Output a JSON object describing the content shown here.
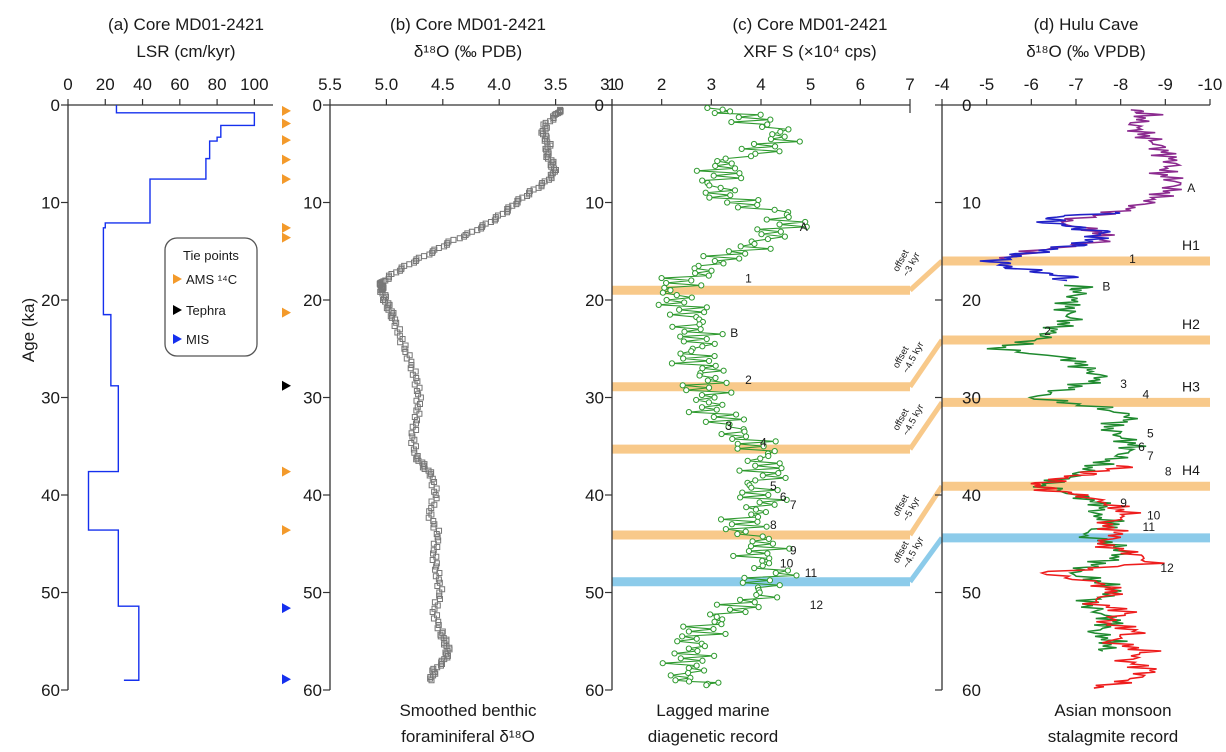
{
  "figure": {
    "ylabel": "Age (ka)",
    "ylim": [
      0,
      60
    ],
    "yticks": [
      0,
      10,
      20,
      30,
      40,
      50,
      60
    ]
  },
  "panels": {
    "a": {
      "title1": "(a) Core MD01-2421",
      "title2": "LSR (cm/kyr)",
      "xticks": [
        "0",
        "20",
        "40",
        "60",
        "80",
        "100"
      ],
      "legend": {
        "title": "Tie points",
        "items": [
          {
            "label": "AMS ¹⁴C",
            "color": "#f39a2b"
          },
          {
            "label": "Tephra",
            "color": "#000000"
          },
          {
            "label": "MIS",
            "color": "#1530ee"
          }
        ]
      }
    },
    "b": {
      "title1": "(b) Core MD01-2421",
      "title2": "δ¹⁸O (‰ PDB)",
      "xticks": [
        "5.5",
        "5.0",
        "4.5",
        "4.0",
        "3.5",
        "3.0"
      ],
      "caption1": "Smoothed benthic",
      "caption2": "foraminiferal δ¹⁸O"
    },
    "c": {
      "title1": "(c) Core MD01-2421",
      "title2": "XRF S (×10⁴ cps)",
      "xticks": [
        "1",
        "2",
        "3",
        "4",
        "5",
        "6",
        "7"
      ],
      "caption1": "Lagged marine",
      "caption2": "diagenetic record",
      "offset_labels": [
        {
          "line1": "offset",
          "line2": "~3 kyr"
        },
        {
          "line1": "offset",
          "line2": "~4.5 kyr"
        },
        {
          "line1": "offset",
          "line2": "~4.5 kyr"
        },
        {
          "line1": "offset",
          "line2": "~5 kyr"
        },
        {
          "line1": "offset",
          "line2": "~4.5 kyr"
        }
      ],
      "event_labels": [
        "A",
        "1",
        "B",
        "2",
        "3",
        "4",
        "5",
        "6",
        "7",
        "8",
        "9",
        "10",
        "11",
        "12"
      ]
    },
    "d": {
      "title1": "(d) Hulu Cave",
      "title2": "δ¹⁸O (‰ VPDB)",
      "xticks": [
        "-4",
        "-5",
        "-6",
        "-7",
        "-8",
        "-9",
        "-10"
      ],
      "caption1": "Asian monsoon",
      "caption2": "stalagmite record",
      "heinrich_labels": [
        "H1",
        "H2",
        "H3",
        "H4"
      ],
      "event_labels": [
        "A",
        "1",
        "B",
        "2",
        "3",
        "4",
        "5",
        "6",
        "7",
        "8",
        "9",
        "10",
        "11",
        "12"
      ]
    }
  },
  "chart_data": [
    {
      "type": "line",
      "panel": "a",
      "title": "(a) Core MD01-2421",
      "xlabel": "LSR (cm/kyr)",
      "ylabel": "Age (ka)",
      "xlim": [
        0,
        110
      ],
      "ylim": [
        0,
        60
      ],
      "series": [
        {
          "color": "#1530ee",
          "step_ages": [
            0,
            0.8,
            2.1,
            3.3,
            3.7,
            5.5,
            7.6,
            12.1,
            12.6,
            21.5,
            28.8,
            37.6,
            43.6,
            51.4,
            59
          ],
          "lsr": [
            26,
            100,
            82,
            80,
            76,
            74,
            44,
            20,
            19,
            23,
            27,
            11,
            27,
            38,
            30
          ]
        }
      ],
      "tie_points": {
        "AMS 14C": [
          0.6,
          1.9,
          3.6,
          5.6,
          7.6,
          12.6,
          13.6,
          21.3,
          37.6,
          43.6
        ],
        "Tephra": [
          28.8
        ],
        "MIS": [
          51.6,
          58.9
        ]
      }
    },
    {
      "type": "scatter",
      "panel": "b",
      "title": "(b) Core MD01-2421",
      "xlabel": "δ18O (‰ PDB)",
      "ylabel": "Age (ka)",
      "xlim": [
        5.5,
        3.0
      ],
      "ylim": [
        0,
        60
      ],
      "reversed_x": true,
      "series": [
        {
          "color": "#777777",
          "age": [
            0.5,
            1,
            2,
            3,
            4,
            5,
            6,
            7,
            8,
            9,
            10,
            11,
            12,
            13,
            14,
            15,
            16,
            17,
            18,
            18.5,
            19,
            20,
            21,
            22,
            24,
            26,
            28,
            30,
            32,
            34,
            36,
            37,
            38,
            40,
            42,
            44,
            46,
            48,
            50,
            52,
            54,
            55,
            56,
            57,
            58,
            59
          ],
          "d18o": [
            3.47,
            3.49,
            3.59,
            3.61,
            3.56,
            3.58,
            3.53,
            3.51,
            3.6,
            3.73,
            3.85,
            3.95,
            4.08,
            4.23,
            4.43,
            4.58,
            4.75,
            4.9,
            5.02,
            5.05,
            5.04,
            5.01,
            4.97,
            4.93,
            4.87,
            4.8,
            4.74,
            4.71,
            4.73,
            4.77,
            4.74,
            4.67,
            4.6,
            4.56,
            4.62,
            4.54,
            4.58,
            4.55,
            4.52,
            4.58,
            4.52,
            4.48,
            4.45,
            4.49,
            4.58,
            4.6
          ]
        }
      ]
    },
    {
      "type": "line",
      "panel": "c",
      "title": "(c) Core MD01-2421",
      "xlabel": "XRF S (×10⁴ cps)",
      "ylabel": "Age (ka)",
      "xlim": [
        1,
        7
      ],
      "ylim": [
        0,
        60
      ],
      "series": [
        {
          "color": "#2f9a2f",
          "age": [
            0.3,
            1,
            2,
            3,
            4,
            5,
            6,
            7,
            8,
            9,
            10,
            11,
            12,
            13,
            14,
            15,
            16,
            17,
            18,
            19,
            20,
            21,
            22,
            23,
            24,
            25,
            26,
            27,
            28,
            29,
            30,
            31,
            32,
            33,
            34,
            35,
            36,
            37,
            38,
            39,
            40,
            41,
            42,
            43,
            44,
            45,
            46,
            47,
            48,
            49,
            50,
            51,
            52,
            53,
            54,
            55,
            56,
            57,
            58,
            59,
            59.5
          ],
          "xrf": [
            3.2,
            3.6,
            4.0,
            4.5,
            4.2,
            3.9,
            3.1,
            3.3,
            3.0,
            3.2,
            3.5,
            4.4,
            4.6,
            4.3,
            4.0,
            3.6,
            3.1,
            2.8,
            2.4,
            2.2,
            2.3,
            2.5,
            2.7,
            2.6,
            2.8,
            2.7,
            2.6,
            2.9,
            3.0,
            2.8,
            3.0,
            2.9,
            3.2,
            3.4,
            3.6,
            3.9,
            4.1,
            4.0,
            4.2,
            3.8,
            4.0,
            4.1,
            3.8,
            3.6,
            3.7,
            4.2,
            3.9,
            4.0,
            4.4,
            3.9,
            4.1,
            3.7,
            3.4,
            3.0,
            2.8,
            2.6,
            2.7,
            2.5,
            2.6,
            2.4,
            2.9
          ]
        }
      ],
      "bands": [
        {
          "age": 19.0,
          "color": "#f8c98a",
          "offset": "~3 kyr"
        },
        {
          "age": 28.9,
          "color": "#f8c98a",
          "offset": "~4.5 kyr"
        },
        {
          "age": 35.3,
          "color": "#f8c98a",
          "offset": "~4.5 kyr"
        },
        {
          "age": 44.1,
          "color": "#f8c98a",
          "offset": "~5 kyr"
        },
        {
          "age": 48.9,
          "color": "#8ccbea",
          "offset": "~4.5 kyr"
        }
      ],
      "labeled_events": [
        {
          "label": "A",
          "age": 12.5,
          "x": 4.7
        },
        {
          "label": "1",
          "age": 17.8,
          "x": 3.6
        },
        {
          "label": "B",
          "age": 23.4,
          "x": 3.3
        },
        {
          "label": "2",
          "age": 28.2,
          "x": 3.6
        },
        {
          "label": "3",
          "age": 32.9,
          "x": 3.2
        },
        {
          "label": "4",
          "age": 34.6,
          "x": 3.9
        },
        {
          "label": "5",
          "age": 39.1,
          "x": 4.1
        },
        {
          "label": "6",
          "age": 40.2,
          "x": 4.3
        },
        {
          "label": "7",
          "age": 41.0,
          "x": 4.5
        },
        {
          "label": "8",
          "age": 43.1,
          "x": 4.1
        },
        {
          "label": "9",
          "age": 45.7,
          "x": 4.5
        },
        {
          "label": "10",
          "age": 47.0,
          "x": 4.3
        },
        {
          "label": "11",
          "age": 48.0,
          "x": 4.8
        },
        {
          "label": "12",
          "age": 51.3,
          "x": 4.9
        }
      ]
    },
    {
      "type": "line",
      "panel": "d",
      "title": "(d) Hulu Cave",
      "xlabel": "δ18O (‰ VPDB)",
      "ylabel": "Age (ka)",
      "xlim": [
        -4,
        -10
      ],
      "ylim": [
        0,
        60
      ],
      "series": [
        {
          "color": "#8b2a8f",
          "age": [
            0.5,
            1,
            2,
            3,
            4,
            5,
            6,
            7,
            8,
            9,
            10,
            11,
            12,
            13,
            14,
            15,
            15.8
          ],
          "d18o": [
            -8.4,
            -8.6,
            -8.3,
            -8.5,
            -8.8,
            -9.0,
            -9.2,
            -8.9,
            -9.3,
            -9.0,
            -8.6,
            -7.9,
            -6.6,
            -7.5,
            -7.6,
            -6.0,
            -5.4
          ]
        },
        {
          "color": "#2121c8",
          "age": [
            11,
            11.5,
            12,
            12.5,
            13,
            14,
            14.5,
            15,
            15.5,
            16,
            16.5,
            17,
            17.5,
            18
          ],
          "d18o": [
            -7.9,
            -6.5,
            -6.4,
            -6.9,
            -7.6,
            -7.3,
            -6.8,
            -6.2,
            -5.6,
            -5.2,
            -5.4,
            -6.0,
            -6.7,
            -6.8
          ]
        },
        {
          "color": "#1f8a2f",
          "age": [
            18.5,
            19,
            20,
            21,
            22,
            23,
            24,
            25,
            26,
            27,
            28,
            29,
            30,
            31,
            32,
            33,
            34,
            35,
            36,
            37,
            38,
            39,
            40,
            41,
            42,
            43,
            44,
            45,
            46,
            47,
            48,
            49,
            50,
            51,
            52,
            53,
            54,
            55,
            56
          ],
          "d18o": [
            -7.0,
            -7.1,
            -6.9,
            -6.8,
            -6.9,
            -6.5,
            -6.2,
            -5.2,
            -6.9,
            -7.2,
            -7.6,
            -6.9,
            -6.0,
            -7.5,
            -8.3,
            -7.7,
            -8.0,
            -8.3,
            -8.0,
            -7.4,
            -7.0,
            -6.2,
            -7.0,
            -7.6,
            -7.4,
            -7.9,
            -7.1,
            -7.8,
            -8.1,
            -7.5,
            -6.9,
            -7.6,
            -7.9,
            -7.2,
            -7.5,
            -7.9,
            -7.4,
            -7.8,
            -7.6
          ]
        },
        {
          "color": "#ee1c1c",
          "age": [
            37,
            37.5,
            38,
            38.5,
            39,
            39.5,
            40,
            41,
            42,
            43,
            44,
            45,
            46,
            47,
            48,
            49,
            50,
            51,
            52,
            53,
            54,
            55,
            56,
            57,
            58,
            59,
            59.8
          ],
          "d18o": [
            -8.2,
            -7.6,
            -7.0,
            -6.5,
            -6.1,
            -6.4,
            -7.1,
            -7.8,
            -8.2,
            -7.6,
            -8.0,
            -7.5,
            -8.3,
            -8.7,
            -6.2,
            -7.5,
            -7.9,
            -7.3,
            -8.2,
            -7.6,
            -8.4,
            -7.7,
            -8.6,
            -8.1,
            -8.7,
            -8.2,
            -7.4
          ]
        }
      ],
      "bands": [
        {
          "age": 16.0,
          "color": "#f8c98a",
          "label": "H1"
        },
        {
          "age": 24.1,
          "color": "#f8c98a",
          "label": "H2"
        },
        {
          "age": 30.5,
          "color": "#f8c98a",
          "label": "H3"
        },
        {
          "age": 39.1,
          "color": "#f8c98a",
          "label": "H4"
        },
        {
          "age": 44.4,
          "color": "#8ccbea",
          "label": ""
        }
      ],
      "labeled_events": [
        {
          "label": "A",
          "age": 8.5,
          "x": -9.4
        },
        {
          "label": "1",
          "age": 15.8,
          "x": -8.1
        },
        {
          "label": "B",
          "age": 18.6,
          "x": -7.5
        },
        {
          "label": "2",
          "age": 23.2,
          "x": -6.2
        },
        {
          "label": "3",
          "age": 28.6,
          "x": -7.9
        },
        {
          "label": "4",
          "age": 29.7,
          "x": -8.4
        },
        {
          "label": "5",
          "age": 33.7,
          "x": -8.5
        },
        {
          "label": "6",
          "age": 35.1,
          "x": -8.3
        },
        {
          "label": "7",
          "age": 36.0,
          "x": -8.5
        },
        {
          "label": "8",
          "age": 37.6,
          "x": -8.9
        },
        {
          "label": "9",
          "age": 40.8,
          "x": -7.9
        },
        {
          "label": "10",
          "age": 42.1,
          "x": -8.5
        },
        {
          "label": "11",
          "age": 43.3,
          "x": -8.4
        },
        {
          "label": "12",
          "age": 47.5,
          "x": -8.8
        }
      ]
    }
  ]
}
